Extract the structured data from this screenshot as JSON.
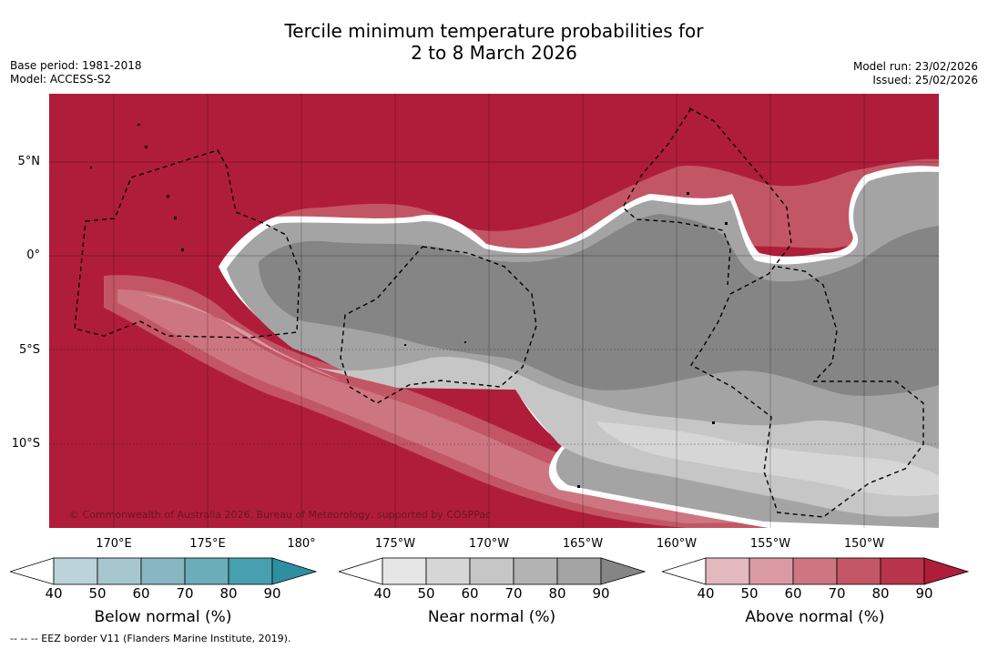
{
  "title": {
    "line1": "Tercile minimum temperature probabilities for",
    "line2": "2 to 8 March 2026"
  },
  "meta_left": {
    "base_period": "Base period: 1981-2018",
    "model": "Model: ACCESS-S2"
  },
  "meta_right": {
    "model_run": "Model run: 23/02/2026",
    "issued": "Issued: 25/02/2026"
  },
  "map": {
    "lat_labels": [
      "5°N",
      "0°",
      "5°S",
      "10°S"
    ],
    "lon_labels": [
      "170°E",
      "175°E",
      "180°",
      "175°W",
      "170°W",
      "165°W",
      "160°W",
      "155°W",
      "150°W"
    ],
    "copyright": "© Commonwealth of Australia 2026, Bureau of Meteorology, supported by COSPPac"
  },
  "colorbars": [
    {
      "title": "Below normal (%)",
      "ticks": [
        "40",
        "50",
        "60",
        "70",
        "80",
        "90"
      ],
      "colors": [
        "#ffffff",
        "#bcd3da",
        "#a6c7cd",
        "#88b6c1",
        "#6badb9",
        "#489fad",
        "#2e8fa0"
      ]
    },
    {
      "title": "Near normal (%)",
      "ticks": [
        "40",
        "50",
        "60",
        "70",
        "80",
        "90"
      ],
      "colors": [
        "#ffffff",
        "#e6e6e6",
        "#d6d6d6",
        "#c6c6c6",
        "#b3b3b3",
        "#a4a4a4",
        "#858585"
      ]
    },
    {
      "title": "Above normal (%)",
      "ticks": [
        "40",
        "50",
        "60",
        "70",
        "80",
        "90"
      ],
      "colors": [
        "#ffffff",
        "#e3b8bf",
        "#d99aa3",
        "#cd7681",
        "#c35665",
        "#b8344a",
        "#b01d3a"
      ]
    }
  ],
  "footnote": "-- -- -- EEZ border V11 (Flanders Marine Institute, 2019)."
}
